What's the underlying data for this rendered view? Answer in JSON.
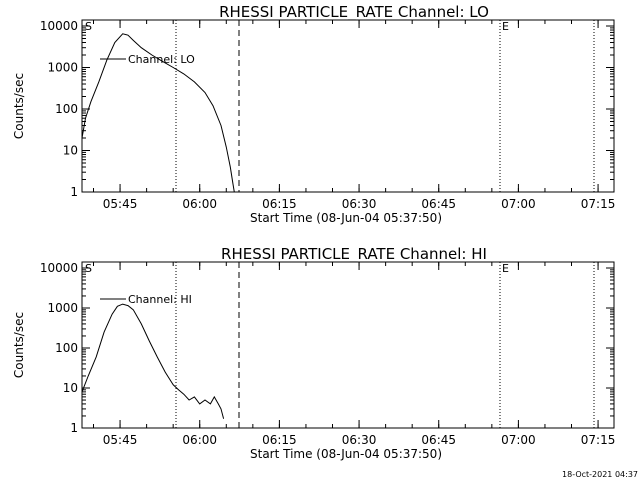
{
  "footer": "18-Oct-2021 04:37",
  "chart_data": [
    {
      "type": "line",
      "title": "RHESSI PARTICLE_RATE Channel: LO",
      "xlabel": "Start Time (08-Jun-04 05:37:50)",
      "ylabel": "Counts/sec",
      "yscale": "log",
      "xlim": [
        "05:37:50",
        "07:18:00"
      ],
      "ylim": [
        1,
        10000
      ],
      "x_ticks": [
        "05:45",
        "06:00",
        "06:15",
        "06:30",
        "06:45",
        "07:00",
        "07:15"
      ],
      "y_ticks": [
        "1",
        "10",
        "100",
        "1000",
        "10000"
      ],
      "legend_label": "Channel: LO",
      "markers": [
        "S",
        "E"
      ],
      "series": [
        {
          "name": "Channel: LO",
          "x": [
            "05:37:50",
            "05:38:30",
            "05:39:30",
            "05:41:00",
            "05:42:30",
            "05:44:00",
            "05:45:30",
            "05:46:30",
            "05:47:30",
            "05:49:00",
            "05:51:00",
            "05:53:00",
            "05:55:00",
            "05:57:00",
            "05:59:00",
            "06:01:00",
            "06:02:30",
            "06:04:00",
            "06:05:00",
            "06:05:45",
            "06:06:15",
            "06:06:30"
          ],
          "y": [
            20,
            60,
            150,
            450,
            1500,
            4000,
            6500,
            6000,
            4500,
            3000,
            2000,
            1400,
            1000,
            700,
            450,
            250,
            120,
            40,
            12,
            4,
            1.6,
            1
          ]
        }
      ]
    },
    {
      "type": "line",
      "title": "RHESSI PARTICLE_RATE Channel: HI",
      "xlabel": "Start Time (08-Jun-04 05:37:50)",
      "ylabel": "Counts/sec",
      "yscale": "log",
      "xlim": [
        "05:37:50",
        "07:18:00"
      ],
      "ylim": [
        1,
        10000
      ],
      "x_ticks": [
        "05:45",
        "06:00",
        "06:15",
        "06:30",
        "06:45",
        "07:00",
        "07:15"
      ],
      "y_ticks": [
        "1",
        "10",
        "100",
        "1000",
        "10000"
      ],
      "legend_label": "Channel: HI",
      "markers": [
        "S",
        "E"
      ],
      "series": [
        {
          "name": "Channel: HI",
          "x": [
            "05:37:50",
            "05:39:00",
            "05:40:30",
            "05:42:00",
            "05:43:30",
            "05:44:30",
            "05:45:30",
            "05:46:30",
            "05:47:30",
            "05:49:00",
            "05:50:30",
            "05:52:00",
            "05:53:30",
            "05:55:00",
            "05:56:00",
            "05:57:00",
            "05:58:00",
            "05:59:00",
            "06:00:00",
            "06:01:00",
            "06:02:00",
            "06:02:45",
            "06:03:30",
            "06:04:00",
            "06:04:30"
          ],
          "y": [
            8,
            20,
            60,
            250,
            700,
            1100,
            1250,
            1150,
            900,
            400,
            150,
            60,
            25,
            12,
            9,
            7,
            5,
            6,
            4,
            5,
            4,
            6,
            4,
            3,
            1.7
          ]
        }
      ]
    }
  ]
}
